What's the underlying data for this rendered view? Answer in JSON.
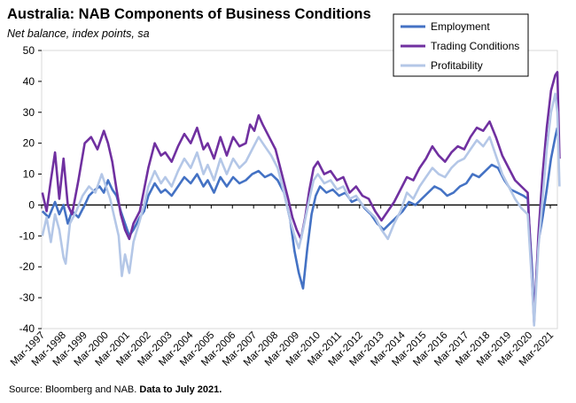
{
  "chart_data": {
    "type": "line",
    "title": "Australia: NAB Components of Business Conditions",
    "subtitle": "Net balance, index points, sa",
    "source": "Source: Bloomberg and NAB.",
    "source_bold": "Data to July 2021.",
    "ylim": [
      -40,
      50
    ],
    "yticks": [
      -40,
      -30,
      -20,
      -10,
      0,
      10,
      20,
      30,
      40,
      50
    ],
    "xticks": [
      "Mar-1997",
      "Mar-1998",
      "Mar-1999",
      "Mar-2000",
      "Mar-2001",
      "Mar-2002",
      "Mar-2003",
      "Mar-2004",
      "Mar-2005",
      "Mar-2006",
      "Mar-2007",
      "Mar-2008",
      "Mar-2009",
      "Mar-2010",
      "Mar-2011",
      "Mar-2012",
      "Mar-2013",
      "Mar-2014",
      "Mar-2015",
      "Mar-2016",
      "Mar-2017",
      "Mar-2018",
      "Mar-2019",
      "Mar-2020",
      "Mar-2021"
    ],
    "x_start": "1997-03",
    "x_end": "2021-07",
    "legend_position": "top-right",
    "series": [
      {
        "name": "Employment",
        "color": "#4472c4",
        "values": [
          [
            1997.2,
            -2
          ],
          [
            1997.5,
            -4
          ],
          [
            1997.8,
            1
          ],
          [
            1998.0,
            -3
          ],
          [
            1998.2,
            0
          ],
          [
            1998.4,
            -6
          ],
          [
            1998.6,
            -2
          ],
          [
            1998.9,
            -4
          ],
          [
            1999.2,
            0
          ],
          [
            1999.4,
            3
          ],
          [
            1999.7,
            5
          ],
          [
            1999.9,
            6
          ],
          [
            2000.1,
            4
          ],
          [
            2000.3,
            8
          ],
          [
            2000.5,
            5
          ],
          [
            2000.7,
            3
          ],
          [
            2000.9,
            -2
          ],
          [
            2001.1,
            -6
          ],
          [
            2001.3,
            -10
          ],
          [
            2001.5,
            -8
          ],
          [
            2001.8,
            -4
          ],
          [
            2002.0,
            -2
          ],
          [
            2002.2,
            3
          ],
          [
            2002.5,
            7
          ],
          [
            2002.8,
            4
          ],
          [
            2003.0,
            5
          ],
          [
            2003.3,
            3
          ],
          [
            2003.6,
            6
          ],
          [
            2003.9,
            9
          ],
          [
            2004.2,
            7
          ],
          [
            2004.5,
            10
          ],
          [
            2004.8,
            6
          ],
          [
            2005.0,
            8
          ],
          [
            2005.3,
            4
          ],
          [
            2005.6,
            9
          ],
          [
            2005.9,
            6
          ],
          [
            2006.2,
            9
          ],
          [
            2006.5,
            7
          ],
          [
            2006.8,
            8
          ],
          [
            2007.1,
            10
          ],
          [
            2007.4,
            11
          ],
          [
            2007.7,
            9
          ],
          [
            2008.0,
            10
          ],
          [
            2008.3,
            8
          ],
          [
            2008.6,
            4
          ],
          [
            2008.9,
            -5
          ],
          [
            2009.1,
            -15
          ],
          [
            2009.3,
            -22
          ],
          [
            2009.5,
            -27
          ],
          [
            2009.7,
            -14
          ],
          [
            2009.9,
            -3
          ],
          [
            2010.1,
            3
          ],
          [
            2010.3,
            6
          ],
          [
            2010.6,
            4
          ],
          [
            2010.9,
            5
          ],
          [
            2011.2,
            3
          ],
          [
            2011.5,
            4
          ],
          [
            2011.8,
            1
          ],
          [
            2012.1,
            2
          ],
          [
            2012.4,
            -1
          ],
          [
            2012.7,
            -3
          ],
          [
            2013.0,
            -6
          ],
          [
            2013.3,
            -8
          ],
          [
            2013.6,
            -6
          ],
          [
            2013.9,
            -4
          ],
          [
            2014.2,
            -2
          ],
          [
            2014.5,
            1
          ],
          [
            2014.8,
            0
          ],
          [
            2015.1,
            2
          ],
          [
            2015.4,
            4
          ],
          [
            2015.7,
            6
          ],
          [
            2016.0,
            5
          ],
          [
            2016.3,
            3
          ],
          [
            2016.6,
            4
          ],
          [
            2016.9,
            6
          ],
          [
            2017.2,
            7
          ],
          [
            2017.5,
            10
          ],
          [
            2017.8,
            9
          ],
          [
            2018.1,
            11
          ],
          [
            2018.4,
            13
          ],
          [
            2018.7,
            12
          ],
          [
            2019.0,
            8
          ],
          [
            2019.3,
            5
          ],
          [
            2019.6,
            4
          ],
          [
            2019.9,
            3
          ],
          [
            2020.1,
            2
          ],
          [
            2020.3,
            -20
          ],
          [
            2020.4,
            -36
          ],
          [
            2020.6,
            -12
          ],
          [
            2020.8,
            -4
          ],
          [
            2021.0,
            5
          ],
          [
            2021.2,
            15
          ],
          [
            2021.4,
            22
          ],
          [
            2021.5,
            25
          ]
        ]
      },
      {
        "name": "Trading Conditions",
        "color": "#7030a0",
        "values": [
          [
            1997.2,
            4
          ],
          [
            1997.4,
            -2
          ],
          [
            1997.6,
            8
          ],
          [
            1997.8,
            17
          ],
          [
            1998.0,
            2
          ],
          [
            1998.2,
            15
          ],
          [
            1998.4,
            0
          ],
          [
            1998.6,
            -3
          ],
          [
            1998.9,
            8
          ],
          [
            1999.2,
            20
          ],
          [
            1999.5,
            22
          ],
          [
            1999.8,
            18
          ],
          [
            2000.1,
            24
          ],
          [
            2000.3,
            20
          ],
          [
            2000.5,
            14
          ],
          [
            2000.7,
            5
          ],
          [
            2000.9,
            -3
          ],
          [
            2001.1,
            -8
          ],
          [
            2001.3,
            -11
          ],
          [
            2001.5,
            -6
          ],
          [
            2001.8,
            -2
          ],
          [
            2002.0,
            5
          ],
          [
            2002.2,
            12
          ],
          [
            2002.5,
            20
          ],
          [
            2002.8,
            16
          ],
          [
            2003.0,
            17
          ],
          [
            2003.3,
            14
          ],
          [
            2003.6,
            19
          ],
          [
            2003.9,
            23
          ],
          [
            2004.2,
            20
          ],
          [
            2004.5,
            25
          ],
          [
            2004.8,
            18
          ],
          [
            2005.0,
            20
          ],
          [
            2005.3,
            15
          ],
          [
            2005.6,
            22
          ],
          [
            2005.9,
            16
          ],
          [
            2006.2,
            22
          ],
          [
            2006.5,
            19
          ],
          [
            2006.8,
            20
          ],
          [
            2007.0,
            26
          ],
          [
            2007.2,
            24
          ],
          [
            2007.4,
            29
          ],
          [
            2007.6,
            26
          ],
          [
            2007.9,
            22
          ],
          [
            2008.2,
            18
          ],
          [
            2008.5,
            10
          ],
          [
            2008.8,
            2
          ],
          [
            2009.0,
            -4
          ],
          [
            2009.2,
            -8
          ],
          [
            2009.4,
            -11
          ],
          [
            2009.6,
            -4
          ],
          [
            2009.8,
            5
          ],
          [
            2010.0,
            12
          ],
          [
            2010.2,
            14
          ],
          [
            2010.5,
            10
          ],
          [
            2010.8,
            11
          ],
          [
            2011.1,
            8
          ],
          [
            2011.4,
            9
          ],
          [
            2011.7,
            4
          ],
          [
            2012.0,
            6
          ],
          [
            2012.3,
            3
          ],
          [
            2012.6,
            2
          ],
          [
            2012.9,
            -2
          ],
          [
            2013.2,
            -5
          ],
          [
            2013.5,
            -2
          ],
          [
            2013.8,
            1
          ],
          [
            2014.1,
            5
          ],
          [
            2014.4,
            9
          ],
          [
            2014.7,
            8
          ],
          [
            2015.0,
            12
          ],
          [
            2015.3,
            15
          ],
          [
            2015.6,
            19
          ],
          [
            2015.9,
            16
          ],
          [
            2016.2,
            14
          ],
          [
            2016.5,
            17
          ],
          [
            2016.8,
            19
          ],
          [
            2017.1,
            18
          ],
          [
            2017.4,
            22
          ],
          [
            2017.7,
            25
          ],
          [
            2018.0,
            24
          ],
          [
            2018.3,
            27
          ],
          [
            2018.6,
            22
          ],
          [
            2018.9,
            16
          ],
          [
            2019.2,
            12
          ],
          [
            2019.5,
            8
          ],
          [
            2019.8,
            6
          ],
          [
            2020.1,
            4
          ],
          [
            2020.3,
            -24
          ],
          [
            2020.4,
            -38
          ],
          [
            2020.6,
            -10
          ],
          [
            2020.8,
            10
          ],
          [
            2021.0,
            25
          ],
          [
            2021.2,
            37
          ],
          [
            2021.4,
            42
          ],
          [
            2021.5,
            43
          ],
          [
            2021.6,
            15
          ]
        ]
      },
      {
        "name": "Profitability",
        "color": "#b4c7e7",
        "values": [
          [
            1997.2,
            -10
          ],
          [
            1997.4,
            -4
          ],
          [
            1997.6,
            -12
          ],
          [
            1997.8,
            -3
          ],
          [
            1998.0,
            -8
          ],
          [
            1998.2,
            -17
          ],
          [
            1998.3,
            -19
          ],
          [
            1998.5,
            -6
          ],
          [
            1998.8,
            -2
          ],
          [
            1999.1,
            3
          ],
          [
            1999.4,
            6
          ],
          [
            1999.7,
            4
          ],
          [
            2000.0,
            10
          ],
          [
            2000.2,
            6
          ],
          [
            2000.4,
            2
          ],
          [
            2000.6,
            -4
          ],
          [
            2000.8,
            -10
          ],
          [
            2000.95,
            -23
          ],
          [
            2001.1,
            -16
          ],
          [
            2001.3,
            -22
          ],
          [
            2001.5,
            -12
          ],
          [
            2001.8,
            -5
          ],
          [
            2002.0,
            0
          ],
          [
            2002.2,
            6
          ],
          [
            2002.5,
            11
          ],
          [
            2002.8,
            7
          ],
          [
            2003.0,
            9
          ],
          [
            2003.3,
            6
          ],
          [
            2003.6,
            11
          ],
          [
            2003.9,
            15
          ],
          [
            2004.2,
            12
          ],
          [
            2004.5,
            17
          ],
          [
            2004.8,
            10
          ],
          [
            2005.0,
            13
          ],
          [
            2005.3,
            8
          ],
          [
            2005.6,
            15
          ],
          [
            2005.9,
            10
          ],
          [
            2006.2,
            15
          ],
          [
            2006.5,
            12
          ],
          [
            2006.8,
            14
          ],
          [
            2007.1,
            18
          ],
          [
            2007.4,
            22
          ],
          [
            2007.7,
            19
          ],
          [
            2008.0,
            16
          ],
          [
            2008.3,
            12
          ],
          [
            2008.6,
            4
          ],
          [
            2008.9,
            -5
          ],
          [
            2009.1,
            -10
          ],
          [
            2009.3,
            -14
          ],
          [
            2009.5,
            -8
          ],
          [
            2009.8,
            2
          ],
          [
            2010.0,
            8
          ],
          [
            2010.2,
            10
          ],
          [
            2010.5,
            7
          ],
          [
            2010.8,
            8
          ],
          [
            2011.1,
            5
          ],
          [
            2011.4,
            6
          ],
          [
            2011.7,
            2
          ],
          [
            2012.0,
            3
          ],
          [
            2012.3,
            0
          ],
          [
            2012.6,
            -2
          ],
          [
            2012.9,
            -4
          ],
          [
            2013.2,
            -8
          ],
          [
            2013.5,
            -11
          ],
          [
            2013.8,
            -6
          ],
          [
            2014.1,
            -2
          ],
          [
            2014.4,
            4
          ],
          [
            2014.7,
            2
          ],
          [
            2015.0,
            6
          ],
          [
            2015.3,
            9
          ],
          [
            2015.6,
            12
          ],
          [
            2015.9,
            10
          ],
          [
            2016.2,
            9
          ],
          [
            2016.5,
            12
          ],
          [
            2016.8,
            14
          ],
          [
            2017.1,
            15
          ],
          [
            2017.4,
            18
          ],
          [
            2017.7,
            21
          ],
          [
            2018.0,
            19
          ],
          [
            2018.3,
            22
          ],
          [
            2018.6,
            16
          ],
          [
            2018.9,
            10
          ],
          [
            2019.2,
            6
          ],
          [
            2019.5,
            2
          ],
          [
            2019.8,
            -1
          ],
          [
            2020.1,
            -3
          ],
          [
            2020.3,
            -25
          ],
          [
            2020.4,
            -39
          ],
          [
            2020.6,
            -14
          ],
          [
            2020.8,
            2
          ],
          [
            2021.0,
            18
          ],
          [
            2021.2,
            30
          ],
          [
            2021.4,
            36
          ],
          [
            2021.5,
            30
          ],
          [
            2021.6,
            6
          ]
        ]
      }
    ]
  }
}
